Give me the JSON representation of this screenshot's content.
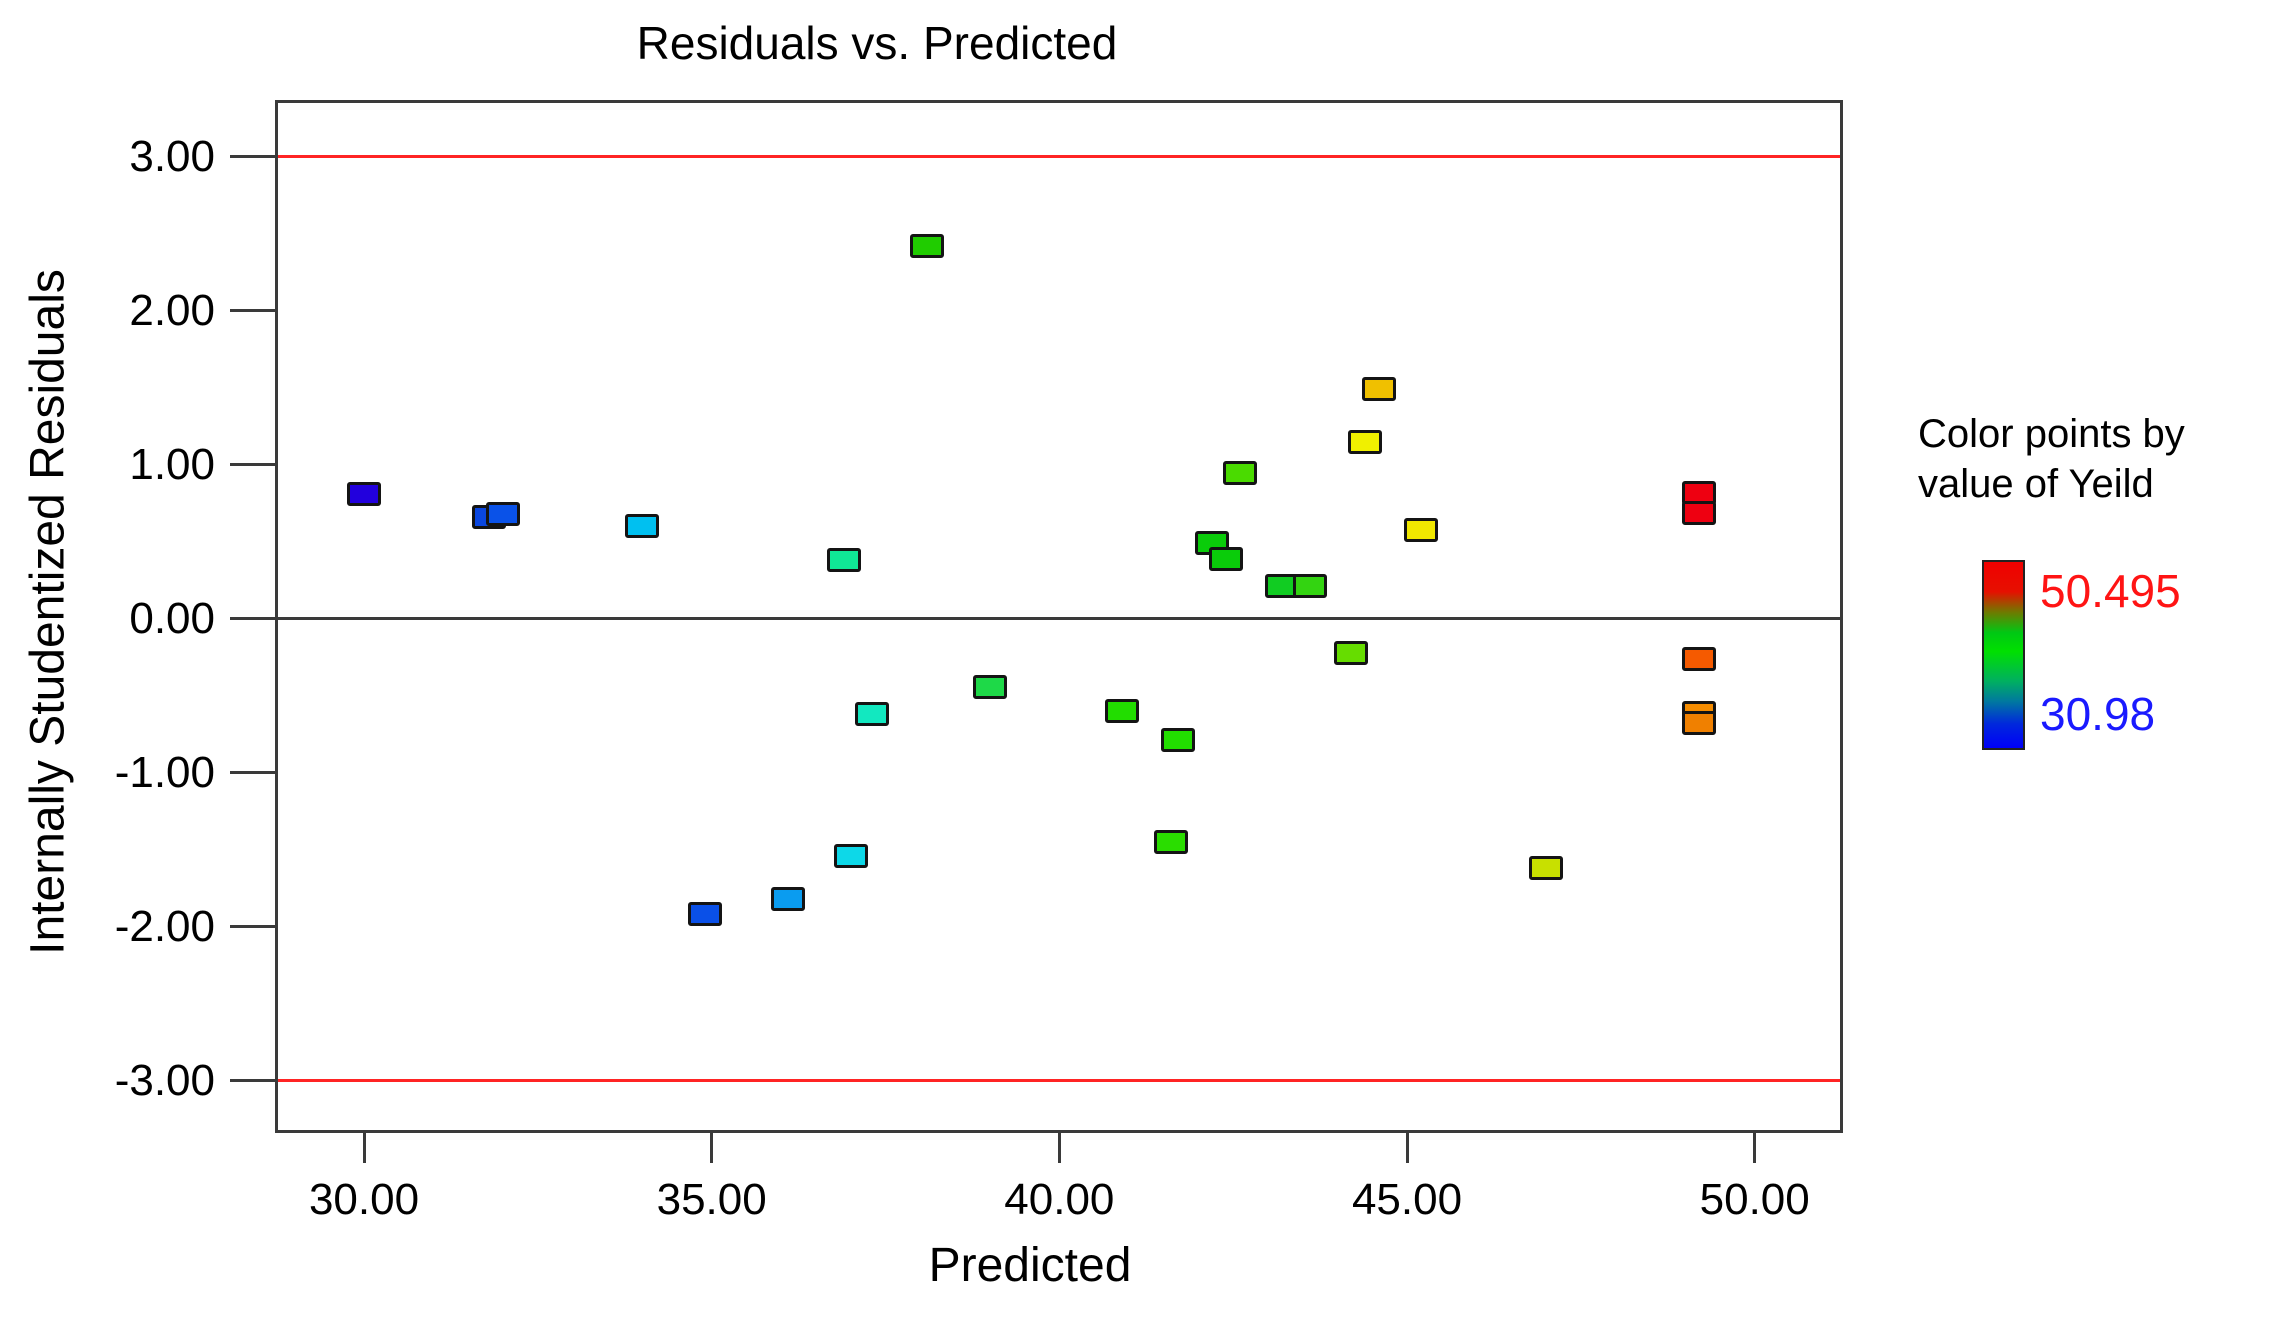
{
  "title": "Residuals vs. Predicted",
  "legend": {
    "title_line1": "Color points by",
    "title_line2": "value of Yeild",
    "max_value": "50.495",
    "min_value": "30.98",
    "max_color": "#ff1414",
    "min_color": "#1a1aff"
  },
  "chart_data": {
    "type": "scatter",
    "title": "Residuals vs. Predicted",
    "xlabel": "Predicted",
    "ylabel": "Internally Studentized Residuals",
    "xlim": [
      28.72,
      51.27
    ],
    "ylim": [
      -3.34,
      3.37
    ],
    "grid": false,
    "x_ticks": {
      "values": [
        30,
        35,
        40,
        45,
        50
      ],
      "labels": [
        "30.00",
        "35.00",
        "40.00",
        "45.00",
        "50.00"
      ]
    },
    "y_ticks": {
      "values": [
        3,
        2,
        1,
        0,
        -1,
        -2,
        -3
      ],
      "labels": [
        "3.00",
        "2.00",
        "1.00",
        "0.00",
        "-1.00",
        "-2.00",
        "-3.00"
      ]
    },
    "guide_lines": {
      "upper": 3.0,
      "lower": -3.0,
      "zero": 0.0,
      "guide_color": "#ff2424",
      "zero_color": "#3a3a3a"
    },
    "color_scale": {
      "label": "Yeild",
      "min": 30.98,
      "max": 50.495,
      "gradient": [
        "#0000f8",
        "#00e000",
        "#f00000"
      ]
    },
    "points": [
      {
        "pred": 30.0,
        "residual": 0.81,
        "color": "#2200dd"
      },
      {
        "pred": 31.8,
        "residual": 0.66,
        "color": "#0a47e0"
      },
      {
        "pred": 32.0,
        "residual": 0.68,
        "color": "#0a52e8"
      },
      {
        "pred": 34.0,
        "residual": 0.6,
        "color": "#00c0f0"
      },
      {
        "pred": 36.9,
        "residual": 0.38,
        "color": "#10e896"
      },
      {
        "pred": 37.3,
        "residual": -0.62,
        "color": "#12e8c0"
      },
      {
        "pred": 39.0,
        "residual": -0.44,
        "color": "#1ed948"
      },
      {
        "pred": 38.1,
        "residual": 2.42,
        "color": "#20cc00"
      },
      {
        "pred": 44.6,
        "residual": 1.49,
        "color": "#f0c000"
      },
      {
        "pred": 44.4,
        "residual": 1.15,
        "color": "#f0f000"
      },
      {
        "pred": 42.6,
        "residual": 0.95,
        "color": "#4adb00"
      },
      {
        "pred": 45.2,
        "residual": 0.58,
        "color": "#f0e800"
      },
      {
        "pred": 42.2,
        "residual": 0.49,
        "color": "#0acc0a"
      },
      {
        "pred": 42.4,
        "residual": 0.39,
        "color": "#0acc0a"
      },
      {
        "pred": 43.2,
        "residual": 0.21,
        "color": "#11cc22"
      },
      {
        "pred": 43.6,
        "residual": 0.21,
        "color": "#33d411"
      },
      {
        "pred": 44.2,
        "residual": -0.22,
        "color": "#66dd00"
      },
      {
        "pred": 40.9,
        "residual": -0.6,
        "color": "#22dd00"
      },
      {
        "pred": 41.7,
        "residual": -0.79,
        "color": "#22dd00"
      },
      {
        "pred": 41.6,
        "residual": -1.45,
        "color": "#2add00"
      },
      {
        "pred": 37.0,
        "residual": -1.54,
        "color": "#0dd8e8"
      },
      {
        "pred": 36.1,
        "residual": -1.82,
        "color": "#0a9cf0"
      },
      {
        "pred": 34.9,
        "residual": -1.92,
        "color": "#0a50e8"
      },
      {
        "pred": 47.0,
        "residual": -1.62,
        "color": "#c8e000"
      },
      {
        "pred": 49.2,
        "residual": 0.82,
        "color": "#ee0011"
      },
      {
        "pred": 49.2,
        "residual": 0.69,
        "color": "#ee0011"
      },
      {
        "pred": 49.2,
        "residual": -0.26,
        "color": "#f55a00"
      },
      {
        "pred": 49.2,
        "residual": -0.61,
        "color": "#f58c00"
      },
      {
        "pred": 49.2,
        "residual": -0.68,
        "color": "#f08000"
      }
    ]
  }
}
